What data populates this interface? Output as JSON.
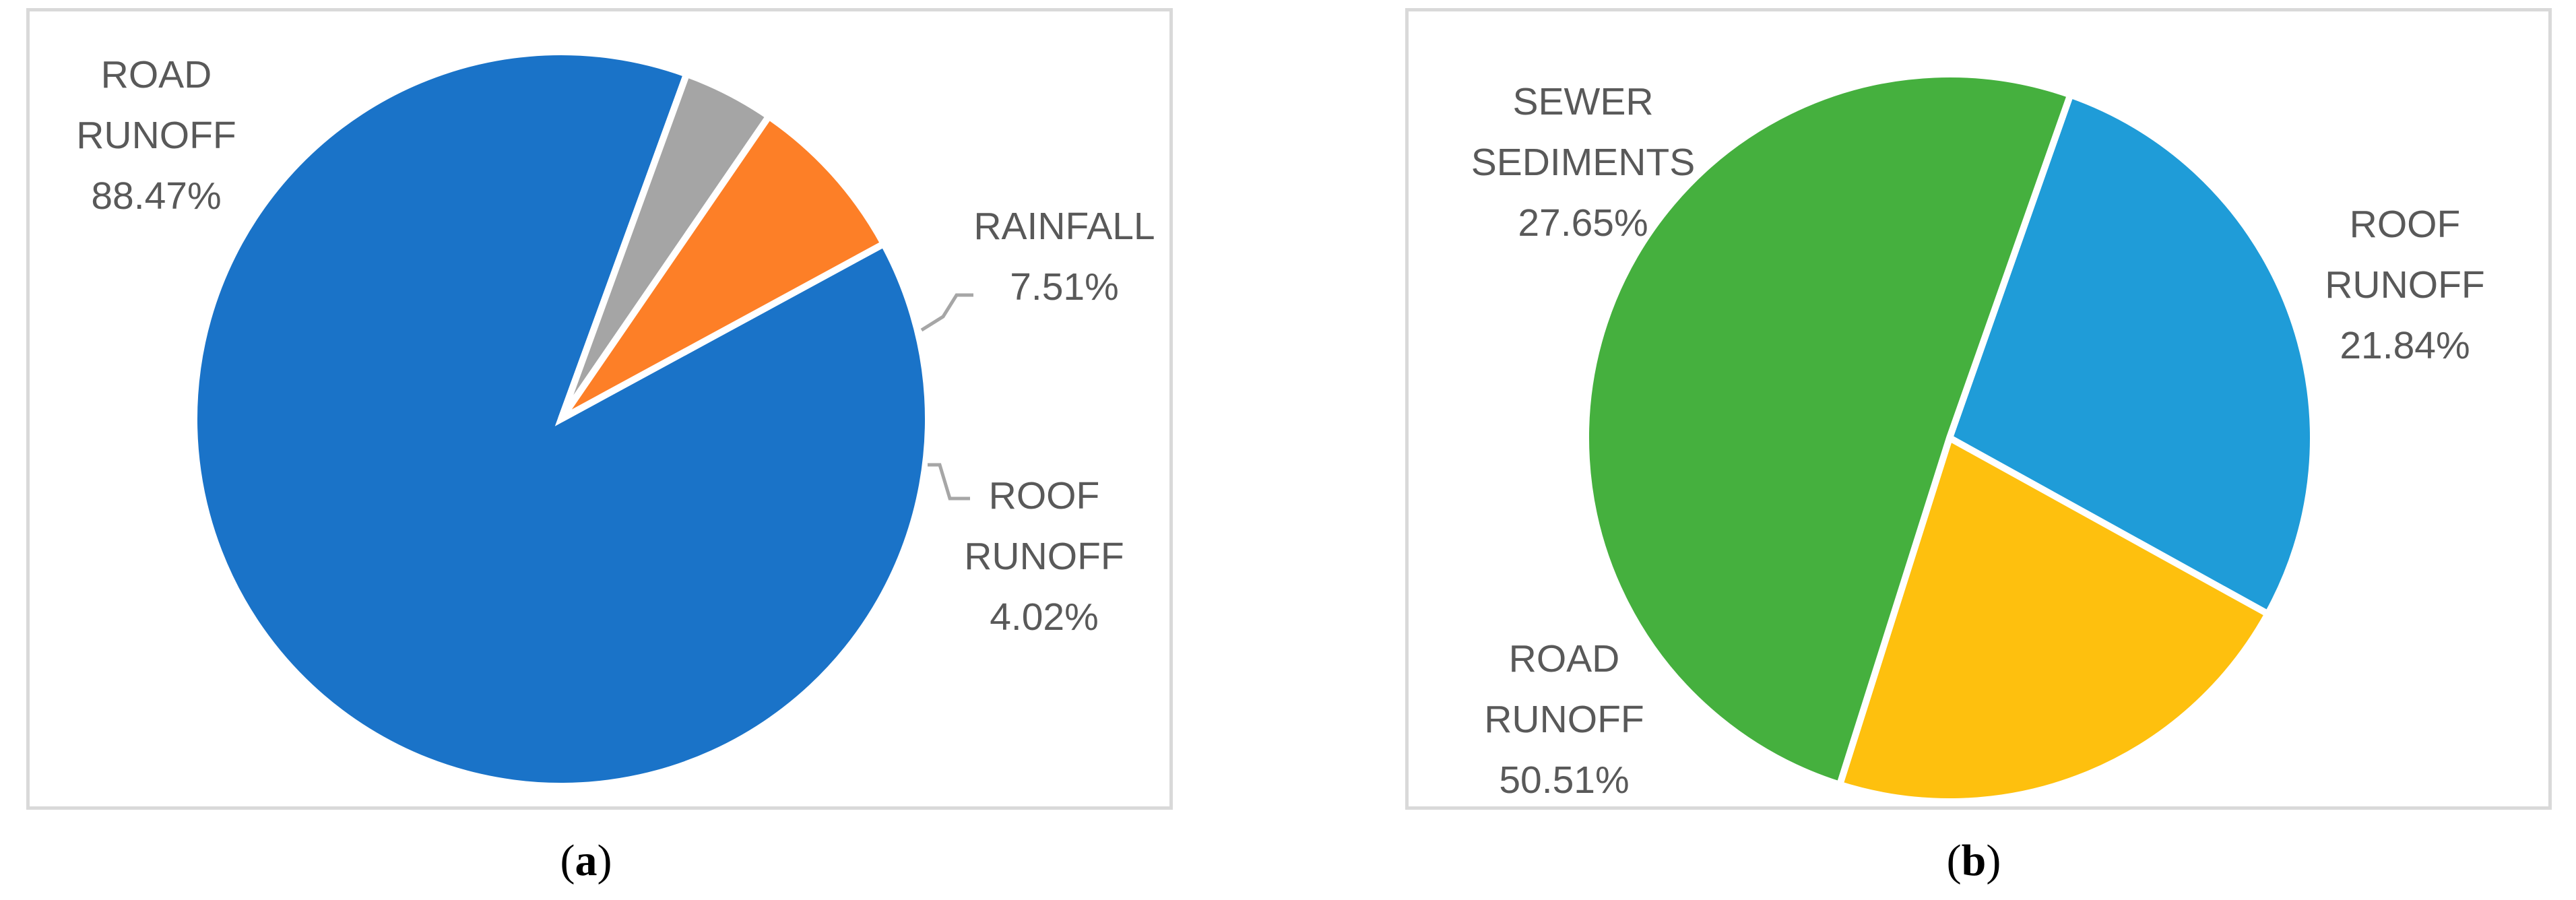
{
  "chart_data": [
    {
      "type": "pie",
      "caption_letter": "a",
      "start_angle_deg": 61.5,
      "slices": [
        {
          "label": [
            "ROAD",
            "RUNOFF"
          ],
          "value": 88.47,
          "value_text": "88.47%",
          "color": "#1a73c8"
        },
        {
          "label": [
            "ROOF",
            "RUNOFF"
          ],
          "value": 4.02,
          "value_text": "4.02%",
          "color": "#a5a5a5"
        },
        {
          "label": [
            "RAINFALL"
          ],
          "value": 7.51,
          "value_text": "7.51%",
          "color": "#fd7f27"
        }
      ]
    },
    {
      "type": "pie",
      "caption_letter": "b",
      "start_angle_deg": 19.4,
      "slices": [
        {
          "label": [
            "SEWER",
            "SEDIMENTS"
          ],
          "value": 27.65,
          "value_text": "27.65%",
          "color": "#1f9cd8"
        },
        {
          "label": [
            "ROOF",
            "RUNOFF"
          ],
          "value": 21.84,
          "value_text": "21.84%",
          "color": "#fec00e"
        },
        {
          "label": [
            "ROAD",
            "RUNOFF"
          ],
          "value": 50.51,
          "value_text": "50.51%",
          "color": "#45b03e"
        }
      ]
    }
  ]
}
